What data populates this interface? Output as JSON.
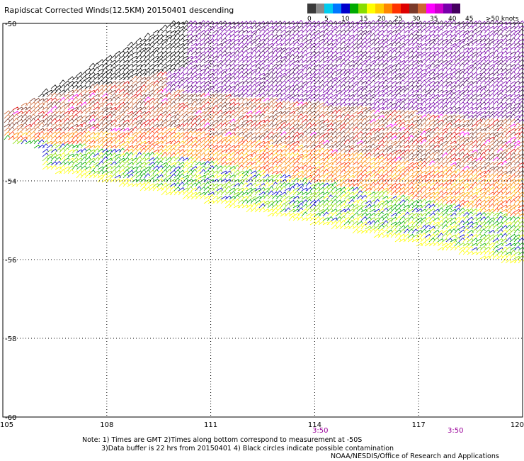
{
  "title": "Rapidscat Corrected Winds(12.5KM) 20150401 descending",
  "colorbar": {
    "colors": [
      "#3a3a3a",
      "#8a8a8a",
      "#00ccee",
      "#0077ff",
      "#0000cc",
      "#00aa00",
      "#88dd00",
      "#ffff00",
      "#ffcc00",
      "#ff8800",
      "#ff3300",
      "#dd0000",
      "#7a3a2a",
      "#cc6633",
      "#ff00ff",
      "#cc00cc",
      "#7700aa",
      "#44005f"
    ],
    "labels": [
      "0",
      "5",
      "10",
      "15",
      "20",
      "25",
      "30",
      "35",
      "40",
      "45",
      ">50 knots"
    ]
  },
  "map": {
    "lon_min": 105,
    "lon_max": 120,
    "lat_top": -50,
    "lat_bottom": -60,
    "lon_ticks": [
      "105",
      "108",
      "111",
      "114",
      "117",
      "120"
    ],
    "lat_ticks": [
      "-50",
      "-54",
      "-56",
      "-58",
      "-60"
    ],
    "time_labels": [
      "3:50",
      "3:50"
    ],
    "time_color": "#990099"
  },
  "notes": {
    "line1": "Note: 1) Times are GMT 2)Times along bottom correspond to measurement at -50S",
    "line2": "3)Data buffer is 22 hrs from 20150401 4) Black circles indicate possible contamination"
  },
  "credit": "NOAA/NESDIS/Office of Research and Applications"
}
